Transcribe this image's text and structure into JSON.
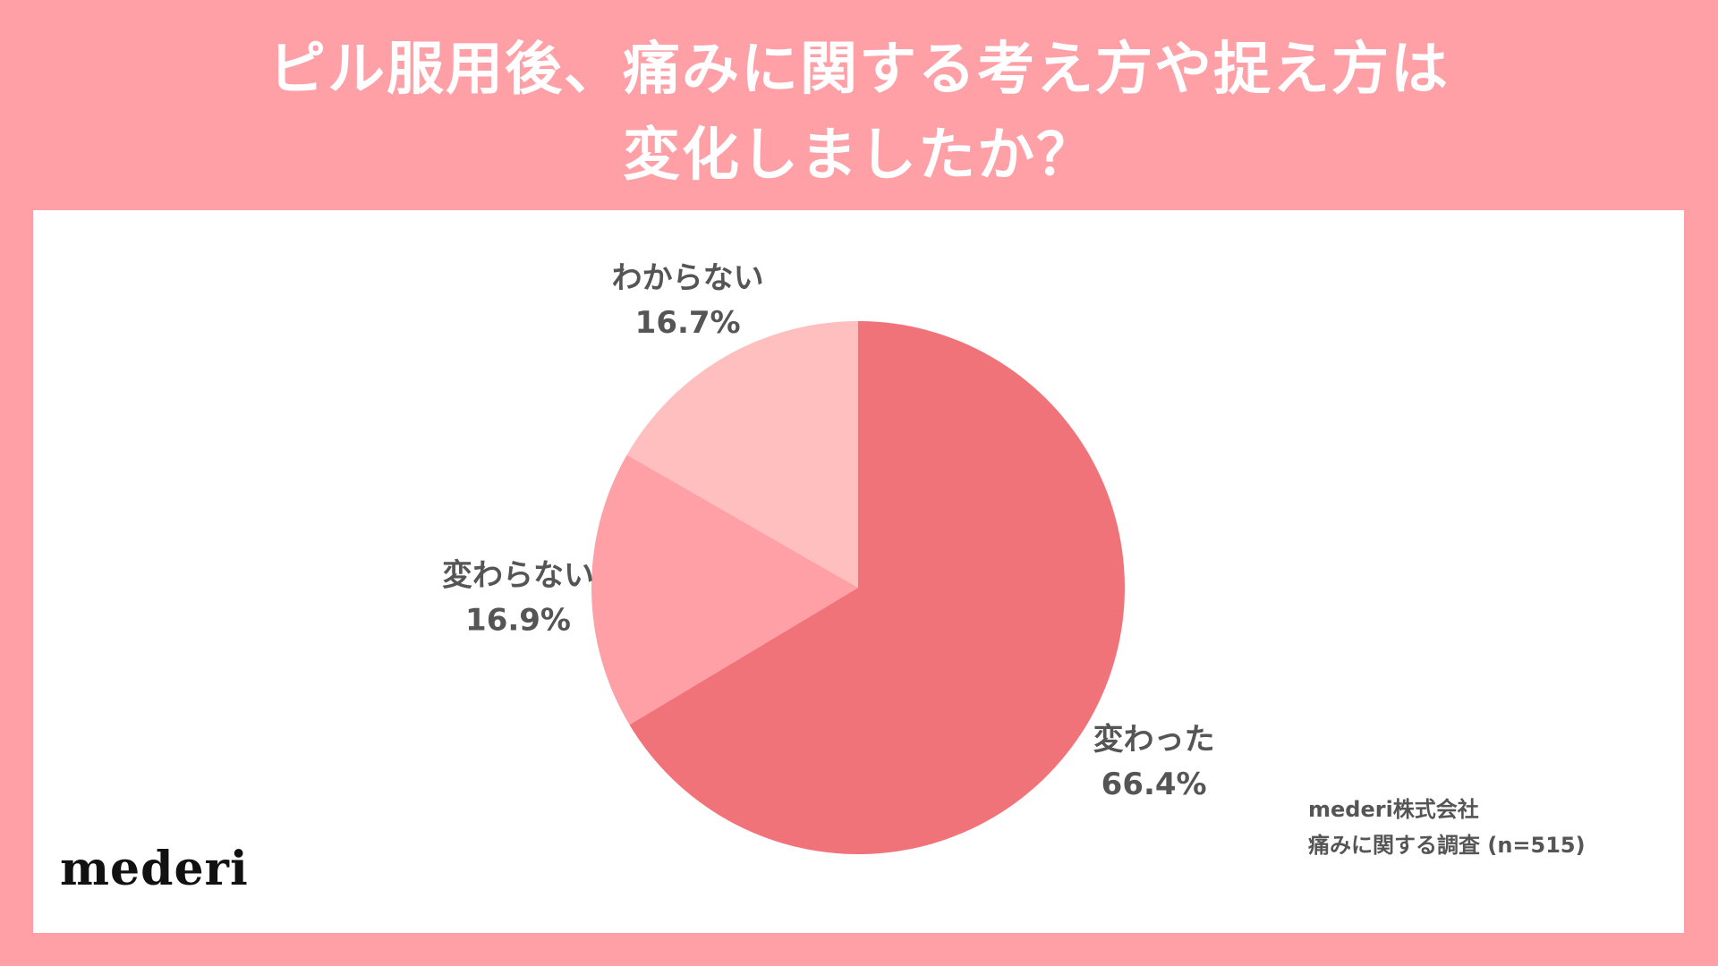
{
  "title_lines": [
    "ピル服用後、痛みに関する考え方や捉え方は",
    "変化しましたか？"
  ],
  "logo_text": "mederi",
  "source_lines": [
    "mederi株式会社",
    "痛みに関する調査 (n=515)"
  ],
  "colors": {
    "page_background": "#ff9fa6",
    "panel_background": "#ffffff",
    "label_text": "#555555"
  },
  "chart_data": {
    "type": "pie",
    "title": "ピル服用後、痛みに関する考え方や捉え方は変化しましたか？",
    "slices": [
      {
        "label": "変わった",
        "value": 66.4,
        "value_label": "66.4%",
        "color": "#f1737a"
      },
      {
        "label": "変わらない",
        "value": 16.9,
        "value_label": "16.9%",
        "color": "#ff9fa6"
      },
      {
        "label": "わからない",
        "value": 16.7,
        "value_label": "16.7%",
        "color": "#ffbfbf"
      }
    ],
    "start_angle": "12 o'clock",
    "direction": "clockwise",
    "legend": "none"
  }
}
